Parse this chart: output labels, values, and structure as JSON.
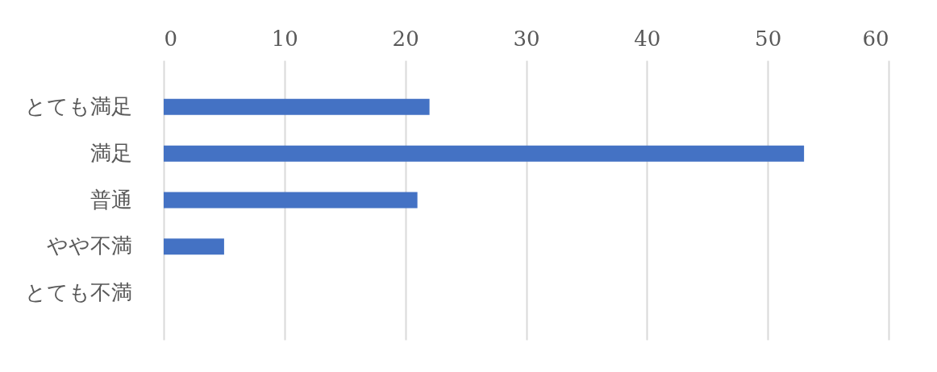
{
  "chart_data": {
    "type": "bar",
    "orientation": "horizontal",
    "categories": [
      "とても満足",
      "満足",
      "普通",
      "やや不満",
      "とても不満"
    ],
    "values": [
      22,
      53,
      21,
      5,
      0
    ],
    "color": "#4472c4",
    "xlim": [
      0,
      60
    ],
    "xticks": [
      0,
      10,
      20,
      30,
      40,
      50,
      60
    ],
    "grid": "x"
  }
}
